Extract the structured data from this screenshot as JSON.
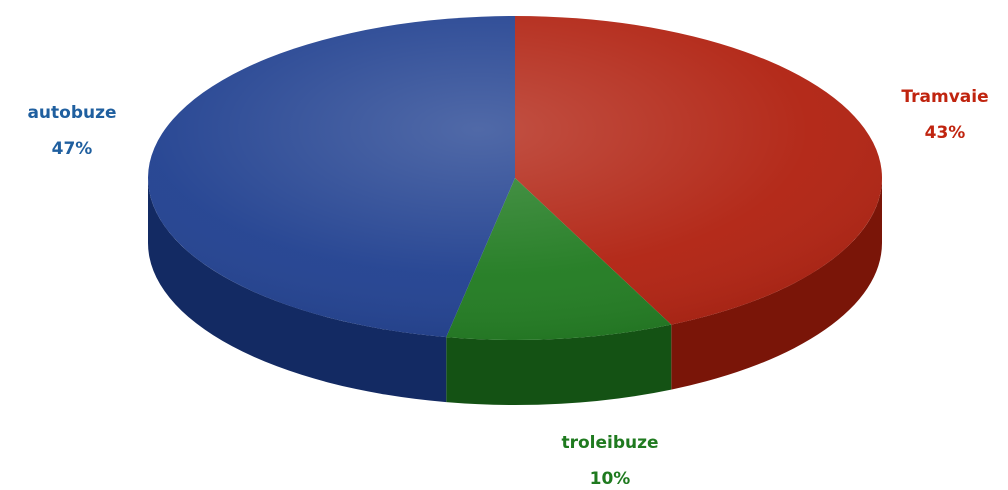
{
  "chart_data": {
    "type": "pie",
    "style": "3d",
    "slices": [
      {
        "label": "Tramvaie",
        "value": 43,
        "display": "43%",
        "color": "#b0200f",
        "side_color": "#7a1508",
        "label_color": "#c0240f"
      },
      {
        "label": "troleibuze",
        "value": 10,
        "display": "10%",
        "color": "#1f7a1f",
        "side_color": "#145214",
        "label_color": "#1f7a1f"
      },
      {
        "label": "autobuze",
        "value": 47,
        "display": "47%",
        "color": "#1f3f8f",
        "side_color": "#132a63",
        "label_color": "#1f5f9f"
      }
    ],
    "legend": "none"
  }
}
